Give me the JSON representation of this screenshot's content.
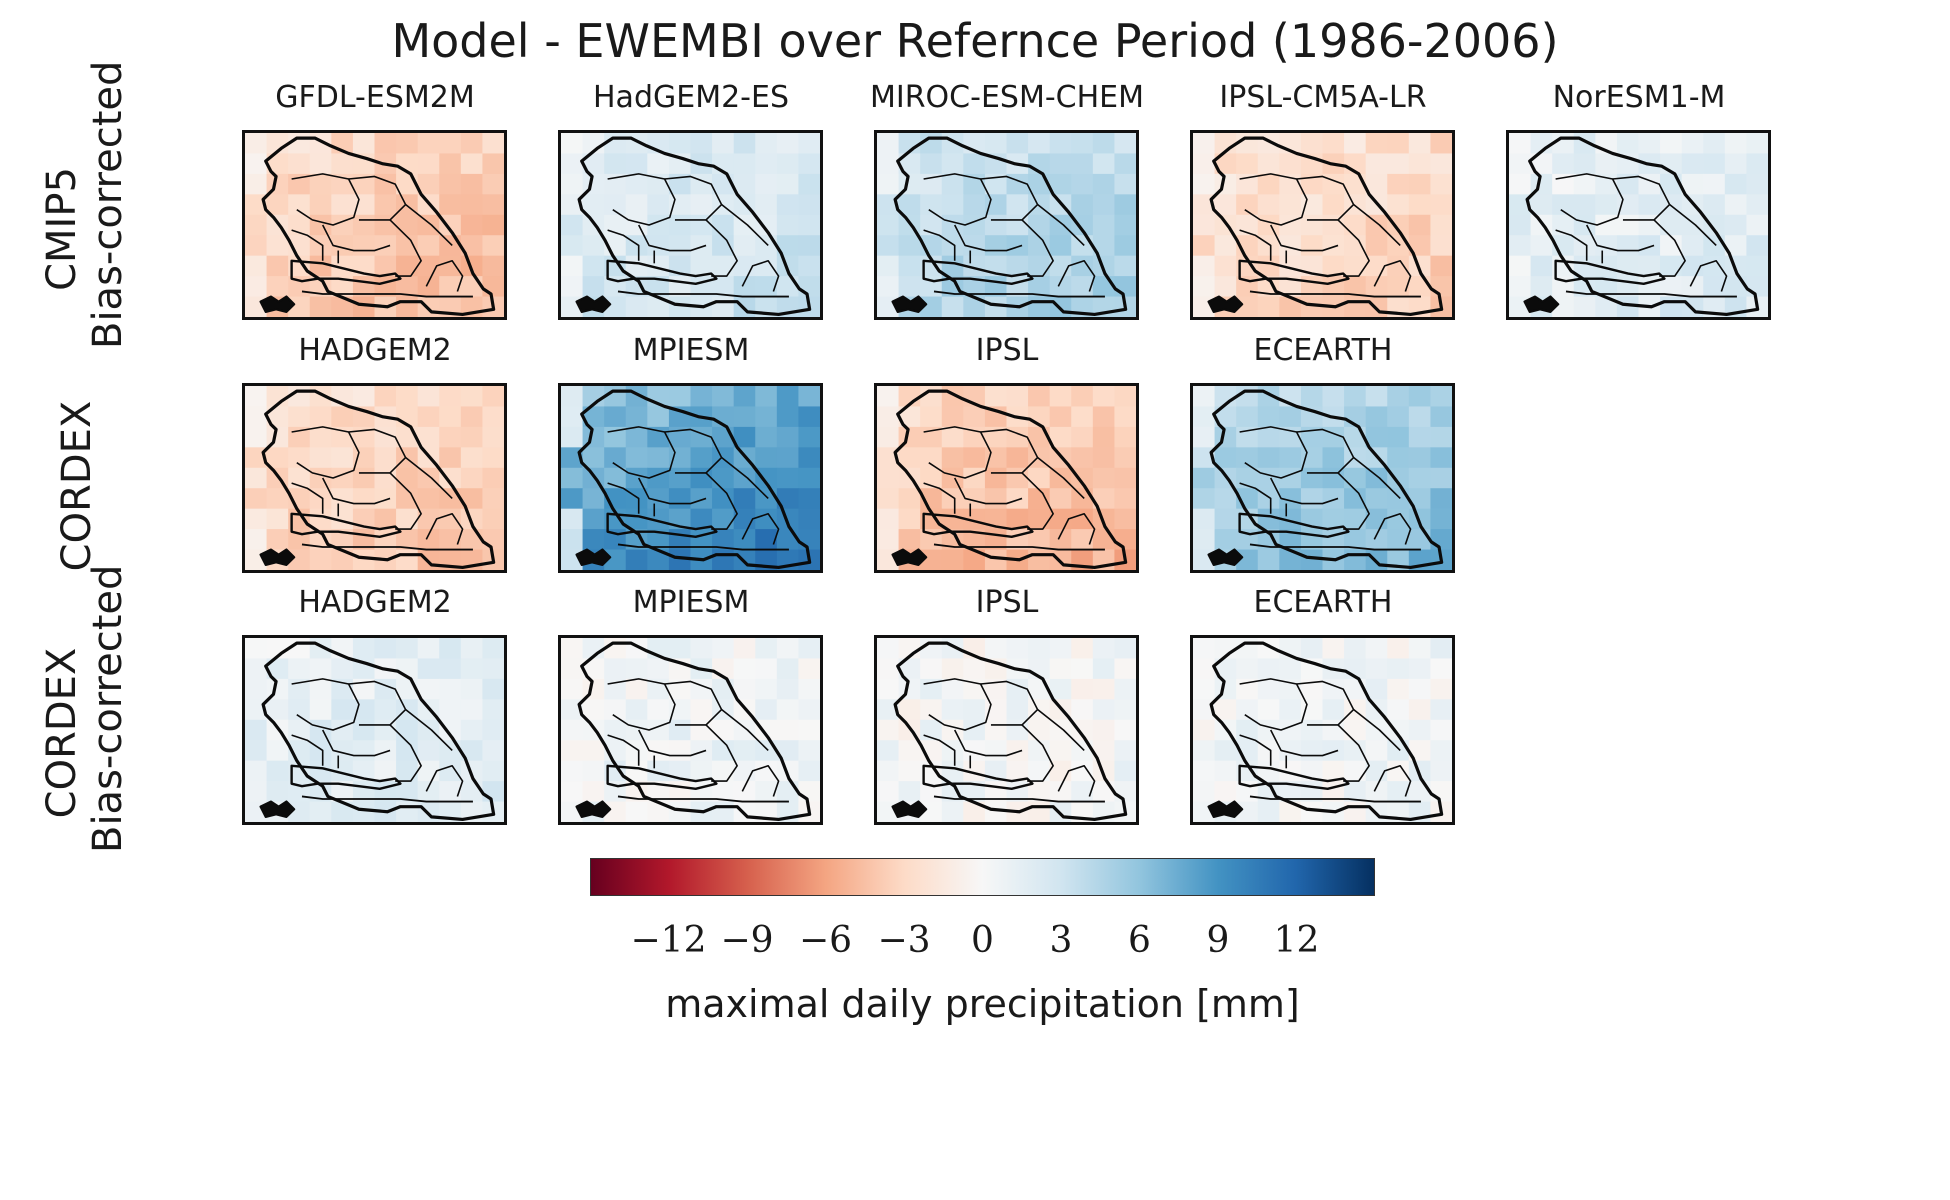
{
  "figure": {
    "title": "Model - EWEMBI over Refernce Period (1986-2006)",
    "rows": [
      {
        "label_lines": [
          "CMIP5",
          "Bias-corrected"
        ],
        "panels": [
          {
            "title": "GFDL-ESM2M",
            "anomaly_mm": -4.5
          },
          {
            "title": "HadGEM2-ES",
            "anomaly_mm": 3.0
          },
          {
            "title": "MIROC-ESM-CHEM",
            "anomaly_mm": 5.0
          },
          {
            "title": "IPSL-CM5A-LR",
            "anomaly_mm": -3.5
          },
          {
            "title": "NorESM1-M",
            "anomaly_mm": 2.0
          }
        ]
      },
      {
        "label_lines": [
          "CORDEX"
        ],
        "panels": [
          {
            "title": "HADGEM2",
            "anomaly_mm": -4.0
          },
          {
            "title": "MPIESM",
            "anomaly_mm": 10.5
          },
          {
            "title": "IPSL",
            "anomaly_mm": -5.0
          },
          {
            "title": "ECEARTH",
            "anomaly_mm": 6.5
          }
        ]
      },
      {
        "label_lines": [
          "CORDEX",
          "Bias-corrected"
        ],
        "panels": [
          {
            "title": "HADGEM2",
            "anomaly_mm": 2.0
          },
          {
            "title": "MPIESM",
            "anomaly_mm": 0.8
          },
          {
            "title": "IPSL",
            "anomaly_mm": 0.3
          },
          {
            "title": "ECEARTH",
            "anomaly_mm": 0.6
          }
        ]
      }
    ],
    "colorbar": {
      "label": "maximal daily precipitation [mm]",
      "range": [
        -15,
        15
      ],
      "ticks": [
        -12,
        -9,
        -6,
        -3,
        0,
        3,
        6,
        9,
        12
      ],
      "tick_labels": [
        "−12",
        "−9",
        "−6",
        "−3",
        "0",
        "3",
        "6",
        "9",
        "12"
      ],
      "colormap": "RdBu",
      "color_stops": [
        "#67001f",
        "#b2182b",
        "#d6604d",
        "#f4a582",
        "#fddbc7",
        "#f7f7f7",
        "#d1e5f0",
        "#92c5de",
        "#4393c3",
        "#2166ac",
        "#053061"
      ]
    }
  }
}
